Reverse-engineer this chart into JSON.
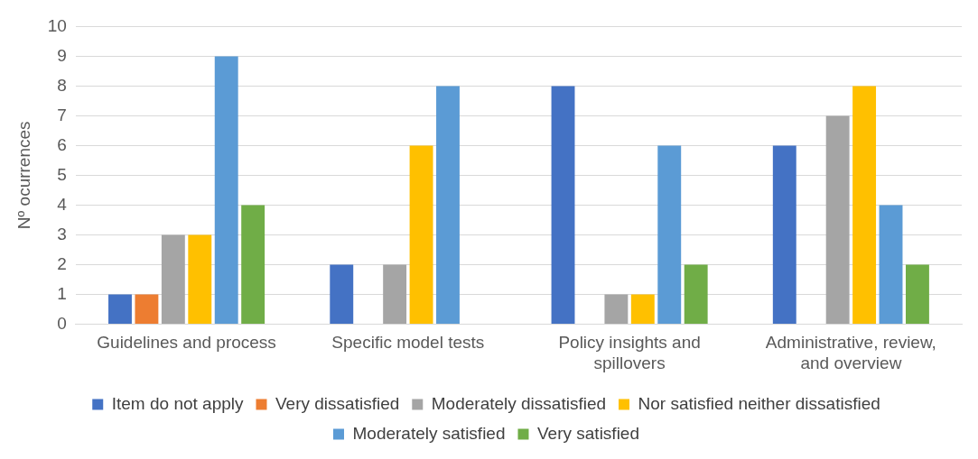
{
  "chart_data": {
    "type": "bar",
    "ylabel": "Nº ocurrences",
    "categories": [
      "Guidelines and process",
      "Specific model tests",
      "Policy insights and spillovers",
      "Administrative, review, and overview"
    ],
    "series": [
      {
        "name": "Item do not apply",
        "color": "#4472c4",
        "values": [
          1,
          2,
          8,
          6
        ]
      },
      {
        "name": "Very dissatisfied",
        "color": "#ed7d31",
        "values": [
          1,
          0,
          0,
          0
        ]
      },
      {
        "name": "Moderately dissatisfied",
        "color": "#a5a5a5",
        "values": [
          3,
          2,
          1,
          7
        ]
      },
      {
        "name": "Nor satisfied neither dissatisfied",
        "color": "#ffc000",
        "values": [
          3,
          6,
          1,
          8
        ]
      },
      {
        "name": "Moderately satisfied",
        "color": "#5b9bd5",
        "values": [
          9,
          8,
          6,
          4
        ]
      },
      {
        "name": "Very satisfied",
        "color": "#70ad47",
        "values": [
          4,
          0,
          2,
          2
        ]
      }
    ],
    "ylim": [
      0,
      10
    ],
    "yticks": [
      0,
      1,
      2,
      3,
      4,
      5,
      6,
      7,
      8,
      9,
      10
    ],
    "grid": "y",
    "legend": "bottom"
  }
}
